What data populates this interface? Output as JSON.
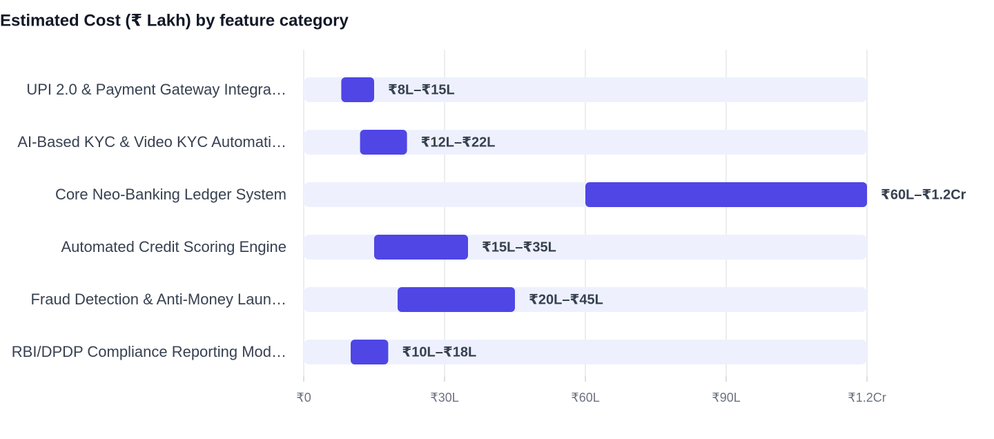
{
  "chart_data": {
    "type": "floating-bar",
    "title": "Estimated Cost (₹ Lakh) by feature category",
    "categories": [
      "UPI 2.0 & Payment Gateway Integra…",
      "AI-Based KYC & Video KYC Automati…",
      "Core Neo-Banking Ledger System",
      "Automated Credit Scoring Engine",
      "Fraud Detection & Anti-Money Laun…",
      "RBI/DPDP Compliance Reporting Mod…"
    ],
    "low": [
      8,
      12,
      60,
      15,
      20,
      10
    ],
    "high": [
      15,
      22,
      120,
      35,
      45,
      18
    ],
    "value_labels": [
      "₹8L–₹15L",
      "₹12L–₹22L",
      "₹60L–₹1.2Cr",
      "₹15L–₹35L",
      "₹20L–₹45L",
      "₹10L–₹18L"
    ],
    "color": "#4f46e5",
    "track_color": "#eef1fd",
    "xlim": [
      0,
      120
    ],
    "xticks": [
      {
        "value": 0,
        "label": "₹0"
      },
      {
        "value": 30,
        "label": "₹30L"
      },
      {
        "value": 60,
        "label": "₹60L"
      },
      {
        "value": 90,
        "label": "₹90L"
      },
      {
        "value": 120,
        "label": "₹1.2Cr"
      }
    ],
    "grid": true
  }
}
